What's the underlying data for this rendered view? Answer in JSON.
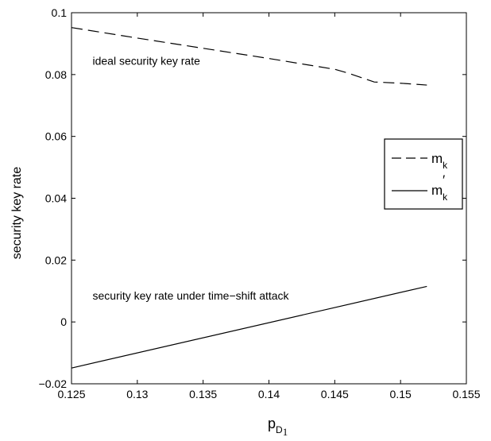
{
  "chart_data": {
    "type": "line",
    "xlabel": {
      "main": "p",
      "sub": "D",
      "subsub": "1"
    },
    "ylabel": "security key rate",
    "xlim": [
      0.125,
      0.155
    ],
    "ylim": [
      -0.02,
      0.1
    ],
    "xticks": [
      0.125,
      0.13,
      0.135,
      0.14,
      0.145,
      0.15,
      0.155
    ],
    "yticks": [
      -0.02,
      0,
      0.02,
      0.04,
      0.06,
      0.08,
      0.1
    ],
    "xtick_labels": [
      "0.125",
      "0.13",
      "0.135",
      "0.14",
      "0.145",
      "0.15",
      "0.155"
    ],
    "ytick_labels": [
      "−0.02",
      "0",
      "0.02",
      "0.04",
      "0.06",
      "0.08",
      "0.1"
    ],
    "grid": false,
    "legend_position": "right",
    "series": [
      {
        "name": "m_k",
        "legend_main": "m",
        "legend_sub": "k",
        "legend_prime": "",
        "style": "dashed",
        "x": [
          0.125,
          0.13,
          0.135,
          0.14,
          0.145,
          0.146,
          0.148,
          0.15,
          0.152
        ],
        "y": [
          0.0952,
          0.0918,
          0.0885,
          0.0852,
          0.0817,
          0.0805,
          0.0776,
          0.0772,
          0.0766
        ]
      },
      {
        "name": "m'_k",
        "legend_main": "m",
        "legend_sub": "k",
        "legend_prime": "′",
        "style": "solid",
        "x": [
          0.125,
          0.152
        ],
        "y": [
          -0.0149,
          0.0115
        ]
      }
    ],
    "annotations": [
      {
        "text": "ideal security key rate",
        "x": 0.1266,
        "y": 0.0832
      },
      {
        "text": "security key rate under time−shift attack",
        "x": 0.1266,
        "y": 0.0072
      }
    ]
  }
}
